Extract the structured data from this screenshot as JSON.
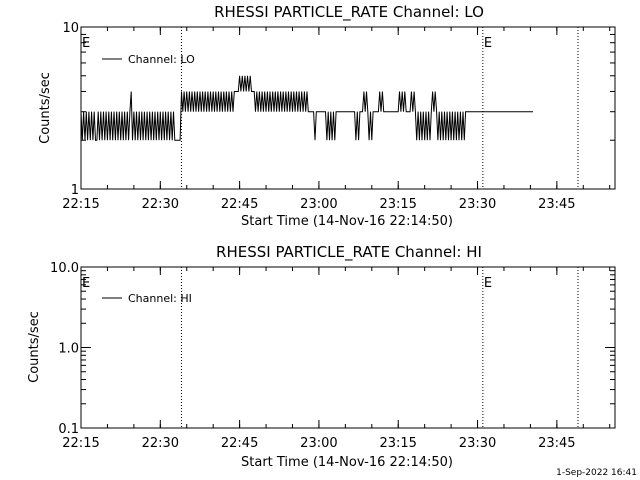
{
  "footer": "1-Sep-2022 16:41",
  "chart_data": [
    {
      "type": "line",
      "title": "RHESSI PARTICLE_RATE Channel: LO",
      "xlabel": "Start Time (14-Nov-16 22:14:50)",
      "ylabel": "Counts/sec",
      "yscale": "log",
      "ylim": [
        1,
        10
      ],
      "y_tick_labels": [
        "10",
        "1"
      ],
      "x_tick_labels": [
        "22:15",
        "22:30",
        "22:45",
        "23:00",
        "23:15",
        "23:30",
        "23:45"
      ],
      "xlim_minutes": [
        0,
        101
      ],
      "legend": "Channel: LO",
      "legend_position": "top-left",
      "event_markers": [
        {
          "label": "E",
          "at": "22:15"
        },
        {
          "label": "E",
          "at": "23:31"
        }
      ],
      "dotted_lines_at": [
        "22:34",
        "23:31",
        "23:49"
      ],
      "series": [
        {
          "values_note": "counts/sec, one sample per ~0.25 min",
          "x_start": "22:15",
          "x_end": "23:49",
          "step_minutes": 0.25,
          "values": [
            3,
            2,
            3,
            2,
            3,
            2,
            3,
            2,
            3,
            2,
            3,
            2,
            2,
            3,
            2,
            3,
            2,
            3,
            2,
            3,
            2,
            3,
            2,
            3,
            2,
            3,
            2,
            3,
            2,
            3,
            2,
            3,
            2,
            3,
            2,
            3,
            2,
            3,
            4,
            2,
            3,
            2,
            3,
            2,
            3,
            2,
            3,
            2,
            3,
            2,
            3,
            2,
            3,
            2,
            3,
            2,
            3,
            2,
            3,
            2,
            3,
            2,
            3,
            2,
            3,
            2,
            3,
            2,
            3,
            2,
            3,
            2,
            2,
            2,
            2,
            2,
            4,
            3,
            4,
            3,
            4,
            3,
            4,
            3,
            4,
            3,
            4,
            3,
            4,
            3,
            4,
            3,
            4,
            3,
            4,
            3,
            4,
            3,
            4,
            3,
            4,
            3,
            4,
            3,
            4,
            3,
            4,
            3,
            4,
            3,
            4,
            3,
            4,
            3,
            4,
            3,
            4,
            4,
            4,
            4,
            5,
            4,
            5,
            4,
            5,
            4,
            5,
            4,
            5,
            4,
            4,
            4,
            3,
            4,
            3,
            4,
            3,
            4,
            3,
            4,
            3,
            4,
            3,
            4,
            3,
            4,
            3,
            4,
            3,
            4,
            3,
            4,
            3,
            4,
            3,
            4,
            3,
            4,
            3,
            4,
            3,
            4,
            3,
            4,
            3,
            4,
            3,
            4,
            3,
            4,
            3,
            4,
            3,
            3,
            3,
            3,
            3,
            2,
            3,
            3,
            3,
            3,
            3,
            3,
            3,
            3,
            2,
            3,
            2,
            3,
            2,
            3,
            2,
            3,
            3,
            3,
            3,
            3,
            3,
            3,
            3,
            3,
            3,
            3,
            3,
            3,
            3,
            3,
            2,
            3,
            2,
            3,
            3,
            3,
            4,
            3,
            4,
            3,
            2,
            3,
            2,
            3,
            3,
            3,
            3,
            3,
            4,
            3,
            4,
            3,
            3,
            3,
            3,
            3,
            3,
            3,
            3,
            3,
            3,
            3,
            3,
            4,
            3,
            4,
            3,
            4,
            3,
            3,
            3,
            3,
            4,
            3,
            4,
            3,
            2,
            3,
            2,
            3,
            2,
            3,
            2,
            3,
            2,
            3,
            2,
            3,
            4,
            3,
            4,
            3,
            2,
            3,
            2,
            3,
            2,
            3,
            2,
            3,
            2,
            3,
            2,
            3,
            2,
            3,
            2,
            3,
            2,
            3,
            2,
            3,
            2,
            3,
            3,
            3,
            3,
            3,
            3,
            3,
            3,
            3,
            3,
            3,
            3,
            3,
            3,
            3,
            3,
            3,
            3,
            3,
            3,
            3,
            3,
            3,
            3,
            3,
            3,
            3,
            3,
            3,
            3,
            3,
            3,
            3,
            3,
            3,
            3,
            3,
            3,
            3,
            3,
            3,
            3,
            3,
            3,
            3,
            3,
            3,
            3,
            3,
            3,
            3,
            3
          ]
        }
      ]
    },
    {
      "type": "line",
      "title": "RHESSI PARTICLE_RATE Channel: HI",
      "xlabel": "Start Time (14-Nov-16 22:14:50)",
      "ylabel": "Counts/sec",
      "yscale": "log",
      "ylim": [
        0.1,
        10
      ],
      "y_tick_labels": [
        "10.0",
        "1.0",
        "0.1"
      ],
      "x_tick_labels": [
        "22:15",
        "22:30",
        "22:45",
        "23:00",
        "23:15",
        "23:30",
        "23:45"
      ],
      "xlim_minutes": [
        0,
        101
      ],
      "legend": "Channel: HI",
      "legend_position": "top-left",
      "event_markers": [
        {
          "label": "E",
          "at": "22:15"
        },
        {
          "label": "E",
          "at": "23:31"
        }
      ],
      "dotted_lines_at": [
        "22:34",
        "23:31",
        "23:49"
      ],
      "series": []
    }
  ]
}
